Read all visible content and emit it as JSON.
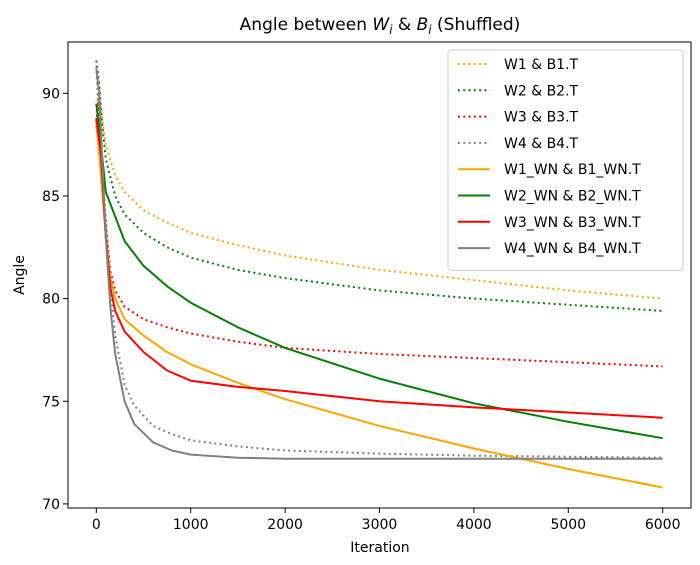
{
  "chart_data": {
    "type": "line",
    "title": "Angle between W_i & B_i (Shuffled)",
    "title_parts": {
      "prefix": "Angle between ",
      "w": "W",
      "i1": "i",
      "amp": " & ",
      "b": "B",
      "i2": "i",
      "suffix": " (Shuffled)"
    },
    "xlabel": "Iteration",
    "ylabel": "Angle",
    "xlim": [
      -300,
      6300
    ],
    "ylim": [
      69.8,
      92.5
    ],
    "xticks": [
      0,
      1000,
      2000,
      3000,
      4000,
      5000,
      6000
    ],
    "yticks": [
      70,
      75,
      80,
      85,
      90
    ],
    "legend_position": "upper right",
    "series": [
      {
        "name": "W1 & B1.T",
        "color": "#ffa500",
        "style": "dotted",
        "points": [
          [
            0,
            88.3
          ],
          [
            20,
            90.0
          ],
          [
            50,
            89.2
          ],
          [
            100,
            87.5
          ],
          [
            200,
            86.0
          ],
          [
            300,
            85.2
          ],
          [
            500,
            84.3
          ],
          [
            750,
            83.7
          ],
          [
            1000,
            83.2
          ],
          [
            1500,
            82.6
          ],
          [
            2000,
            82.1
          ],
          [
            3000,
            81.4
          ],
          [
            4000,
            80.9
          ],
          [
            5000,
            80.4
          ],
          [
            6000,
            80.0
          ]
        ]
      },
      {
        "name": "W2 & B2.T",
        "color": "#008000",
        "style": "dotted",
        "points": [
          [
            0,
            91.6
          ],
          [
            30,
            90.5
          ],
          [
            60,
            88.6
          ],
          [
            100,
            86.8
          ],
          [
            200,
            85.0
          ],
          [
            300,
            84.1
          ],
          [
            500,
            83.2
          ],
          [
            750,
            82.5
          ],
          [
            1000,
            82.0
          ],
          [
            1500,
            81.4
          ],
          [
            2000,
            81.0
          ],
          [
            3000,
            80.4
          ],
          [
            4000,
            80.0
          ],
          [
            5000,
            79.7
          ],
          [
            6000,
            79.4
          ]
        ]
      },
      {
        "name": "W3 & B3.T",
        "color": "#ff0000",
        "style": "dotted",
        "points": [
          [
            0,
            88.6
          ],
          [
            20,
            89.6
          ],
          [
            50,
            87.0
          ],
          [
            100,
            83.5
          ],
          [
            150,
            81.3
          ],
          [
            200,
            80.4
          ],
          [
            300,
            79.6
          ],
          [
            500,
            79.0
          ],
          [
            750,
            78.6
          ],
          [
            1000,
            78.3
          ],
          [
            1500,
            77.9
          ],
          [
            2000,
            77.6
          ],
          [
            3000,
            77.3
          ],
          [
            4000,
            77.1
          ],
          [
            5000,
            76.9
          ],
          [
            6000,
            76.7
          ]
        ]
      },
      {
        "name": "W4 & B4.T",
        "color": "#808080",
        "style": "dotted",
        "points": [
          [
            0,
            91.3
          ],
          [
            20,
            89.5
          ],
          [
            50,
            87.0
          ],
          [
            100,
            84.0
          ],
          [
            150,
            80.5
          ],
          [
            200,
            78.2
          ],
          [
            300,
            75.8
          ],
          [
            400,
            74.8
          ],
          [
            600,
            73.8
          ],
          [
            800,
            73.4
          ],
          [
            1000,
            73.1
          ],
          [
            1500,
            72.8
          ],
          [
            2000,
            72.6
          ],
          [
            3000,
            72.45
          ],
          [
            4000,
            72.35
          ],
          [
            5000,
            72.3
          ],
          [
            6000,
            72.25
          ]
        ]
      },
      {
        "name": "W1_WN & B1_WN.T",
        "color": "#ffa500",
        "style": "solid",
        "points": [
          [
            0,
            88.6
          ],
          [
            50,
            86.0
          ],
          [
            100,
            83.0
          ],
          [
            150,
            81.0
          ],
          [
            200,
            80.0
          ],
          [
            300,
            79.0
          ],
          [
            500,
            78.2
          ],
          [
            750,
            77.4
          ],
          [
            1000,
            76.8
          ],
          [
            1500,
            75.9
          ],
          [
            2000,
            75.1
          ],
          [
            3000,
            73.8
          ],
          [
            4000,
            72.7
          ],
          [
            5000,
            71.7
          ],
          [
            6000,
            70.8
          ]
        ]
      },
      {
        "name": "W2_WN & B2_WN.T",
        "color": "#008000",
        "style": "solid",
        "points": [
          [
            0,
            89.5
          ],
          [
            50,
            87.5
          ],
          [
            100,
            85.2
          ],
          [
            200,
            84.0
          ],
          [
            300,
            82.8
          ],
          [
            500,
            81.6
          ],
          [
            750,
            80.6
          ],
          [
            1000,
            79.8
          ],
          [
            1500,
            78.6
          ],
          [
            2000,
            77.6
          ],
          [
            3000,
            76.1
          ],
          [
            4000,
            74.9
          ],
          [
            5000,
            74.0
          ],
          [
            6000,
            73.2
          ]
        ]
      },
      {
        "name": "W3_WN & B3_WN.T",
        "color": "#ff0000",
        "style": "solid",
        "points": [
          [
            0,
            88.8
          ],
          [
            50,
            87.0
          ],
          [
            100,
            83.0
          ],
          [
            150,
            80.5
          ],
          [
            200,
            79.4
          ],
          [
            300,
            78.4
          ],
          [
            500,
            77.4
          ],
          [
            750,
            76.5
          ],
          [
            1000,
            76.0
          ],
          [
            1500,
            75.7
          ],
          [
            2000,
            75.5
          ],
          [
            3000,
            75.0
          ],
          [
            4000,
            74.7
          ],
          [
            5000,
            74.45
          ],
          [
            6000,
            74.2
          ]
        ]
      },
      {
        "name": "W4_WN & B4_WN.T",
        "color": "#808080",
        "style": "solid",
        "points": [
          [
            0,
            91.2
          ],
          [
            30,
            90.0
          ],
          [
            60,
            87.0
          ],
          [
            100,
            83.0
          ],
          [
            150,
            79.5
          ],
          [
            200,
            77.3
          ],
          [
            300,
            75.0
          ],
          [
            400,
            73.9
          ],
          [
            600,
            73.0
          ],
          [
            800,
            72.6
          ],
          [
            1000,
            72.4
          ],
          [
            1500,
            72.25
          ],
          [
            2000,
            72.2
          ],
          [
            3000,
            72.2
          ],
          [
            4000,
            72.2
          ],
          [
            5000,
            72.2
          ],
          [
            6000,
            72.2
          ]
        ]
      }
    ]
  }
}
